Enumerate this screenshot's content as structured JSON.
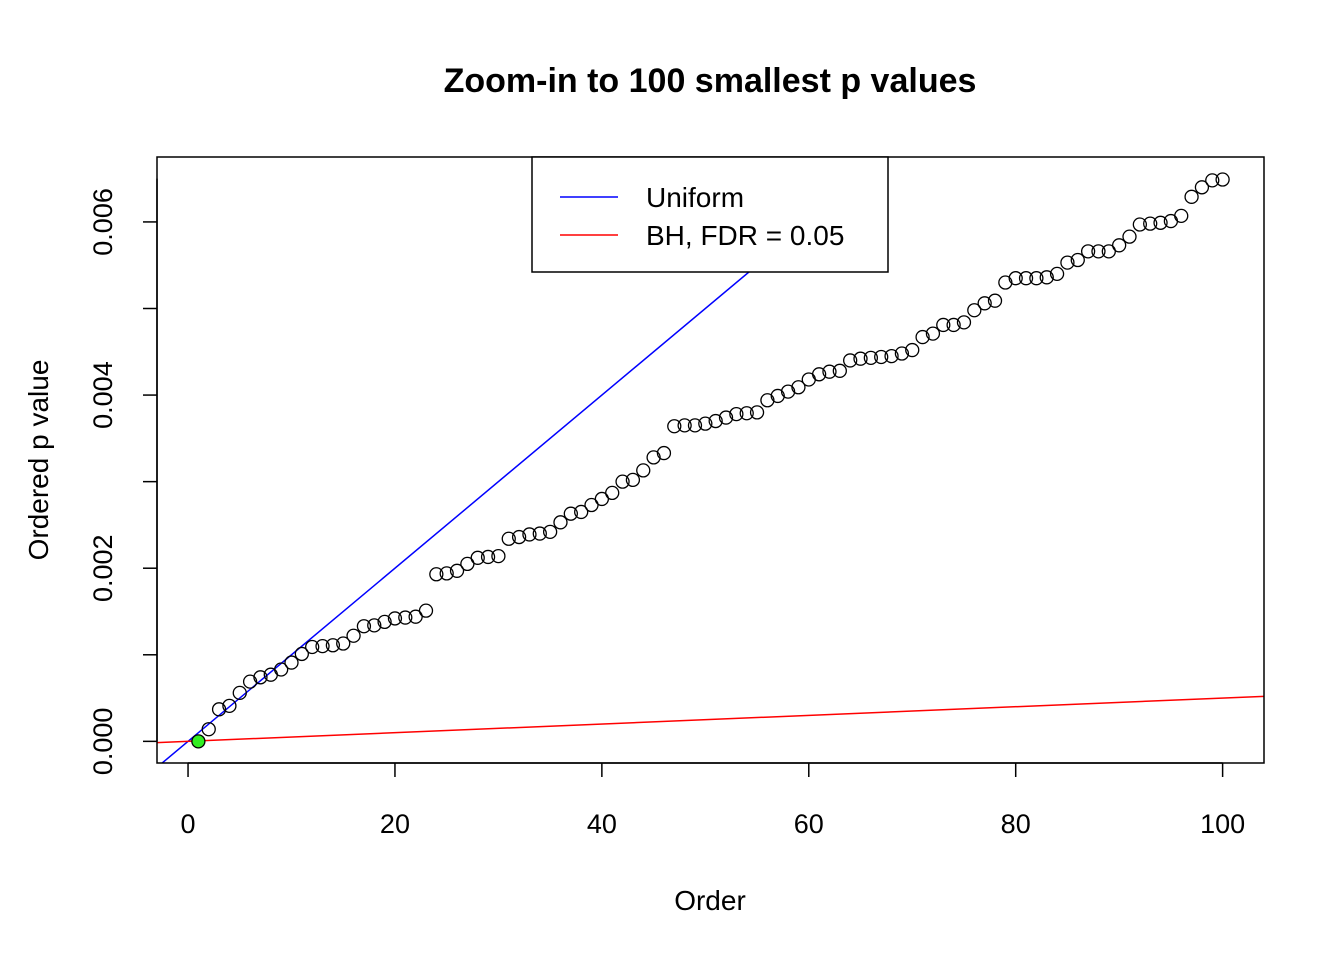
{
  "chart_data": {
    "type": "scatter",
    "title": "Zoom-in to 100 smallest p values",
    "xlabel": "Order",
    "ylabel": "Ordered p value",
    "xlim": [
      -3,
      104
    ],
    "ylim": [
      -0.00025,
      0.00675
    ],
    "xticks": [
      "0",
      "20",
      "40",
      "60",
      "80",
      "100"
    ],
    "yticks": [
      "0.000",
      "0.002",
      "0.004",
      "0.006"
    ],
    "x": [
      1,
      2,
      3,
      4,
      5,
      6,
      7,
      8,
      9,
      10,
      11,
      12,
      13,
      14,
      15,
      16,
      17,
      18,
      19,
      20,
      21,
      22,
      23,
      24,
      25,
      26,
      27,
      28,
      29,
      30,
      31,
      32,
      33,
      34,
      35,
      36,
      37,
      38,
      39,
      40,
      41,
      42,
      43,
      44,
      45,
      46,
      47,
      48,
      49,
      50,
      51,
      52,
      53,
      54,
      55,
      56,
      57,
      58,
      59,
      60,
      61,
      62,
      63,
      64,
      65,
      66,
      67,
      68,
      69,
      70,
      71,
      72,
      73,
      74,
      75,
      76,
      77,
      78,
      79,
      80,
      81,
      82,
      83,
      84,
      85,
      86,
      87,
      88,
      89,
      90,
      91,
      92,
      93,
      94,
      95,
      96,
      97,
      98,
      99,
      100
    ],
    "series": [
      {
        "values": [
          0.0,
          0.00014,
          0.00037,
          0.00041,
          0.00056,
          0.00069,
          0.00074,
          0.00077,
          0.00083,
          0.00091,
          0.00101,
          0.00109,
          0.0011,
          0.00111,
          0.00113,
          0.00122,
          0.00133,
          0.00134,
          0.00138,
          0.00142,
          0.00143,
          0.00144,
          0.00151,
          0.00193,
          0.00194,
          0.00197,
          0.00205,
          0.00212,
          0.00213,
          0.00214,
          0.00234,
          0.00236,
          0.00239,
          0.0024,
          0.00242,
          0.00253,
          0.00263,
          0.00265,
          0.00273,
          0.0028,
          0.00287,
          0.003,
          0.00302,
          0.00313,
          0.00328,
          0.00333,
          0.00364,
          0.00365,
          0.00365,
          0.00367,
          0.0037,
          0.00374,
          0.00378,
          0.00379,
          0.0038,
          0.00394,
          0.00399,
          0.00404,
          0.00409,
          0.00418,
          0.00424,
          0.00427,
          0.00428,
          0.0044,
          0.00442,
          0.00443,
          0.00444,
          0.00445,
          0.00448,
          0.00452,
          0.00467,
          0.00471,
          0.00481,
          0.00481,
          0.00484,
          0.00498,
          0.00506,
          0.00509,
          0.0053,
          0.00535,
          0.00535,
          0.00535,
          0.00536,
          0.0054,
          0.00553,
          0.00556,
          0.00566,
          0.00566,
          0.00566,
          0.00573,
          0.00583,
          0.00597,
          0.00598,
          0.00599,
          0.00601,
          0.00607,
          0.00629,
          0.0064,
          0.00648,
          0.00649
        ],
        "highlight_index": 0,
        "highlight_color": "#33ee22"
      }
    ],
    "lines": [
      {
        "name": "Uniform",
        "color": "#0000ff",
        "slope": 0.0001,
        "intercept": 0
      },
      {
        "name": "BH, FDR = 0.05",
        "color": "#ff0000",
        "slope": 5e-06,
        "intercept": 0
      }
    ],
    "legend": {
      "position": "top",
      "entries": [
        "Uniform",
        "BH, FDR = 0.05"
      ]
    },
    "grid": false
  }
}
